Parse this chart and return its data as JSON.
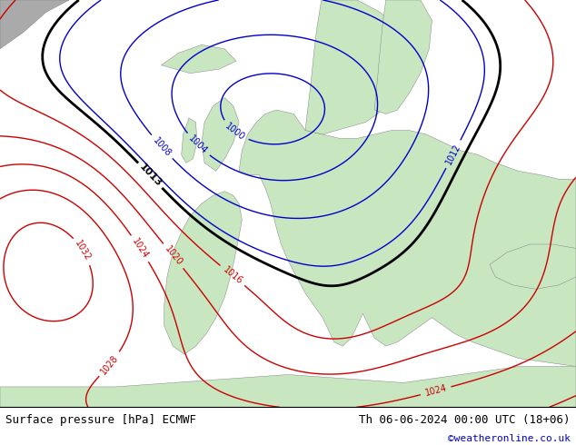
{
  "title_left": "Surface pressure [hPa] ECMWF",
  "title_right": "Th 06-06-2024 00:00 UTC (18+06)",
  "credit": "©weatheronline.co.uk",
  "bg_color": "#cce5f5",
  "land_color": "#c8e6c0",
  "gray_color": "#aaaaaa",
  "footer_bg": "#ffffff",
  "title_fontsize": 9,
  "credit_fontsize": 8,
  "credit_color": "#0000cc"
}
